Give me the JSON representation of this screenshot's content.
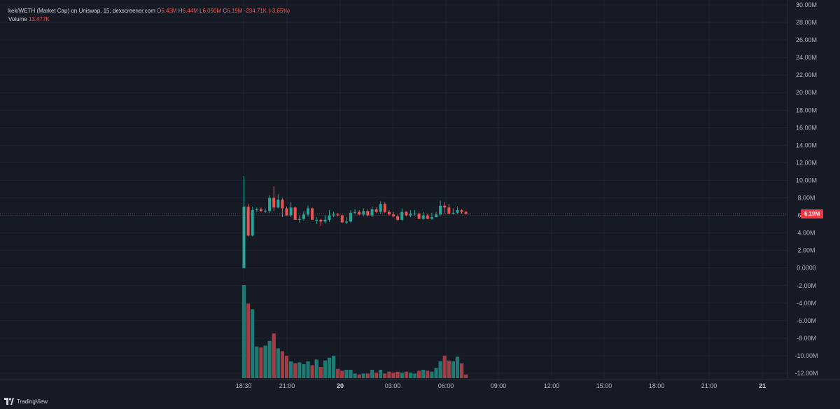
{
  "legend": {
    "symbol": "kek/WETH (Market Cap) on Uniswap, 15, dexscreener.com",
    "open_label": "O",
    "open": "6.43M",
    "high_label": "H",
    "high": "6.44M",
    "low_label": "L",
    "low": "6.090M",
    "close_label": "C",
    "close": "6.19M",
    "change": "-234.71K (-3.65%)",
    "volume_label": "Volume",
    "volume": "13.477K"
  },
  "price_tag": "6.19M",
  "brand": "TradingView",
  "colors": {
    "background": "#161a25",
    "up": "#26a69a",
    "down": "#ef5350",
    "grid": "#262b37",
    "price_line": "#f23645"
  },
  "chart_data": {
    "type": "candlestick",
    "y_axis_labels": [
      "30.00M",
      "28.00M",
      "26.00M",
      "24.00M",
      "22.00M",
      "20.00M",
      "18.00M",
      "16.00M",
      "14.00M",
      "12.00M",
      "10.00M",
      "8.00M",
      "6.00M",
      "4.00M",
      "2.00M",
      "0.0000",
      "-2.00M",
      "-4.00M",
      "-6.00M",
      "-8.00M",
      "-10.00M",
      "-12.00M"
    ],
    "y_range_millions": [
      -12,
      30
    ],
    "x_axis_labels": [
      "18:30",
      "21:00",
      "20",
      "03:00",
      "06:00",
      "09:00",
      "12:00",
      "15:00",
      "18:00",
      "21:00",
      "21"
    ],
    "last_price_millions": 6.19,
    "candles_millions": [
      [
        0,
        7.0,
        10.5,
        0,
        7.0
      ],
      [
        7.0,
        7.0,
        7.3,
        3.6,
        3.7
      ],
      [
        3.7,
        6.8,
        7.0,
        3.6,
        6.6
      ],
      [
        6.6,
        6.6,
        6.9,
        6.4,
        6.7
      ],
      [
        6.7,
        6.7,
        6.9,
        6.4,
        6.5
      ],
      [
        6.5,
        6.6,
        6.8,
        6.3,
        6.5
      ],
      [
        6.5,
        8.1,
        8.3,
        6.3,
        8.0
      ],
      [
        8.0,
        7.8,
        9.3,
        6.5,
        6.9
      ],
      [
        6.9,
        8.0,
        8.4,
        6.8,
        7.8
      ],
      [
        7.8,
        7.1,
        8.0,
        5.8,
        6.8
      ],
      [
        6.8,
        6.4,
        7.0,
        6.2,
        6.0
      ],
      [
        6.0,
        7.1,
        7.5,
        5.8,
        6.9
      ],
      [
        6.9,
        6.0,
        7.0,
        5.6,
        5.5
      ],
      [
        5.5,
        5.8,
        6.0,
        5.2,
        5.6
      ],
      [
        5.6,
        6.2,
        6.5,
        5.4,
        6.1
      ],
      [
        6.1,
        6.9,
        7.1,
        5.9,
        6.8
      ],
      [
        6.8,
        5.6,
        6.9,
        5.5,
        5.5
      ],
      [
        5.5,
        5.6,
        5.8,
        5.0,
        5.5
      ],
      [
        5.5,
        5.4,
        5.6,
        4.8,
        5.3
      ],
      [
        5.3,
        5.8,
        6.0,
        5.1,
        5.5
      ],
      [
        5.5,
        6.2,
        6.6,
        5.3,
        6.0
      ],
      [
        6.0,
        6.2,
        6.4,
        5.8,
        6.1
      ],
      [
        6.1,
        6.1,
        6.3,
        5.9,
        6.0
      ],
      [
        6.0,
        5.4,
        6.1,
        5.2,
        5.2
      ],
      [
        5.2,
        5.6,
        5.8,
        5.0,
        5.3
      ],
      [
        5.3,
        6.4,
        6.6,
        5.2,
        6.3
      ],
      [
        6.3,
        6.5,
        6.7,
        6.1,
        6.4
      ],
      [
        6.4,
        6.3,
        6.6,
        6.0,
        6.1
      ],
      [
        6.1,
        6.6,
        6.8,
        5.9,
        6.5
      ],
      [
        6.5,
        6.2,
        6.7,
        5.9,
        6.0
      ],
      [
        6.0,
        6.8,
        7.0,
        5.8,
        6.7
      ],
      [
        6.7,
        6.6,
        6.9,
        6.3,
        6.4
      ],
      [
        6.4,
        7.4,
        7.6,
        6.2,
        7.3
      ],
      [
        7.3,
        6.6,
        7.5,
        6.3,
        6.4
      ],
      [
        6.4,
        6.2,
        6.6,
        6.0,
        6.1
      ],
      [
        6.1,
        6.1,
        6.4,
        5.8,
        5.9
      ],
      [
        5.9,
        5.6,
        6.1,
        5.4,
        5.5
      ],
      [
        5.5,
        6.5,
        6.8,
        5.4,
        6.4
      ],
      [
        6.4,
        6.2,
        6.5,
        5.9,
        6.0
      ],
      [
        6.0,
        6.4,
        6.6,
        5.8,
        6.2
      ],
      [
        6.2,
        6.4,
        6.6,
        6.0,
        6.2
      ],
      [
        6.2,
        5.8,
        6.3,
        5.6,
        5.6
      ],
      [
        5.6,
        6.2,
        6.4,
        5.5,
        6.0
      ],
      [
        6.0,
        5.9,
        6.2,
        5.6,
        5.6
      ],
      [
        5.6,
        6.0,
        6.3,
        5.5,
        5.8
      ],
      [
        5.8,
        6.2,
        6.4,
        5.8,
        6.1
      ],
      [
        6.1,
        7.2,
        7.7,
        6.0,
        7.1
      ],
      [
        7.1,
        7.0,
        7.5,
        6.2,
        6.9
      ],
      [
        6.9,
        6.4,
        7.3,
        6.2,
        6.2
      ],
      [
        6.2,
        6.5,
        6.8,
        6.1,
        6.3
      ],
      [
        6.3,
        6.8,
        7.0,
        6.2,
        6.6
      ],
      [
        6.6,
        6.6,
        6.7,
        6.2,
        6.4
      ],
      [
        6.43,
        6.19,
        6.44,
        6.09,
        6.19
      ]
    ],
    "candles_format": "[open, high-ish body top, wick high, wick low, close] in millions",
    "volumes_relative": [
      1.0,
      0.8,
      0.74,
      0.34,
      0.33,
      0.35,
      0.4,
      0.48,
      0.32,
      0.29,
      0.24,
      0.18,
      0.16,
      0.17,
      0.15,
      0.18,
      0.14,
      0.2,
      0.12,
      0.19,
      0.22,
      0.24,
      0.1,
      0.08,
      0.09,
      0.09,
      0.05,
      0.04,
      0.05,
      0.05,
      0.09,
      0.06,
      0.09,
      0.05,
      0.07,
      0.06,
      0.07,
      0.06,
      0.07,
      0.06,
      0.05,
      0.08,
      0.09,
      0.08,
      0.07,
      0.11,
      0.18,
      0.24,
      0.19,
      0.18,
      0.23,
      0.16,
      0.04
    ]
  }
}
